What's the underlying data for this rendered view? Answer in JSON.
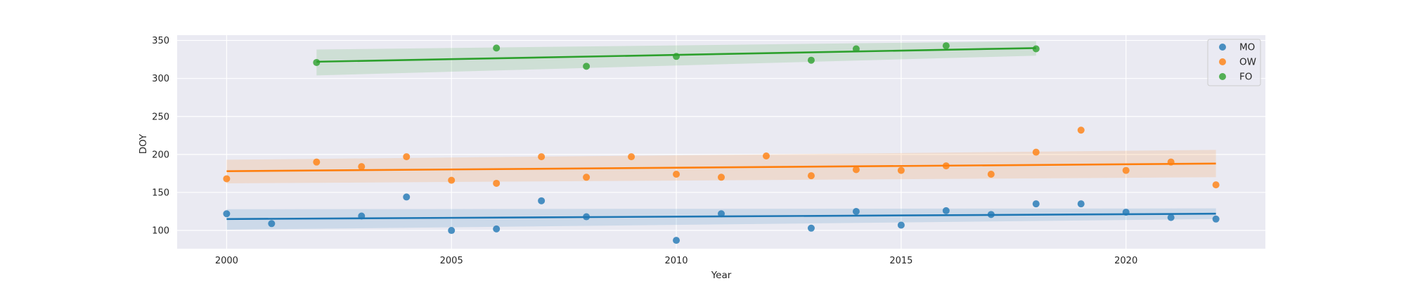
{
  "chart_data": {
    "type": "scatter",
    "title": "",
    "xlabel": "Year",
    "ylabel": "DOY",
    "xlim": [
      1998.9,
      2023.1
    ],
    "ylim": [
      76,
      357
    ],
    "xticks": [
      2000,
      2005,
      2010,
      2015,
      2020
    ],
    "yticks": [
      100,
      150,
      200,
      250,
      300,
      350
    ],
    "grid": true,
    "legend_position": "top-right",
    "series": [
      {
        "name": "MO",
        "color": "#1f77b4",
        "x": [
          2000,
          2001,
          2003,
          2004,
          2005,
          2006,
          2007,
          2008,
          2010,
          2011,
          2013,
          2014,
          2015,
          2016,
          2017,
          2018,
          2019,
          2020,
          2021,
          2022
        ],
        "y": [
          122,
          109,
          119,
          144,
          100,
          102,
          139,
          118,
          87,
          122,
          103,
          125,
          107,
          126,
          121,
          135,
          135,
          124,
          117,
          115
        ],
        "trend": [
          115,
          122
        ],
        "band_low": [
          101,
          115
        ],
        "band_high": [
          128,
          129
        ]
      },
      {
        "name": "OW",
        "color": "#ff7f0e",
        "x": [
          2000,
          2002,
          2003,
          2004,
          2005,
          2006,
          2007,
          2008,
          2009,
          2010,
          2011,
          2012,
          2013,
          2014,
          2015,
          2016,
          2017,
          2018,
          2019,
          2020,
          2021,
          2022
        ],
        "y": [
          168,
          190,
          184,
          197,
          166,
          162,
          197,
          170,
          197,
          174,
          170,
          198,
          172,
          180,
          179,
          185,
          174,
          203,
          232,
          179,
          190,
          160
        ],
        "trend": [
          178,
          188
        ],
        "band_low": [
          162,
          170
        ],
        "band_high": [
          193,
          206
        ]
      },
      {
        "name": "FO",
        "color": "#2ca02c",
        "x": [
          2002,
          2006,
          2008,
          2010,
          2013,
          2014,
          2016,
          2018
        ],
        "y": [
          321,
          340,
          316,
          329,
          324,
          339,
          343,
          339
        ],
        "trend": [
          322,
          340
        ],
        "band_low": [
          304,
          330
        ],
        "band_high": [
          338,
          349
        ]
      }
    ]
  }
}
